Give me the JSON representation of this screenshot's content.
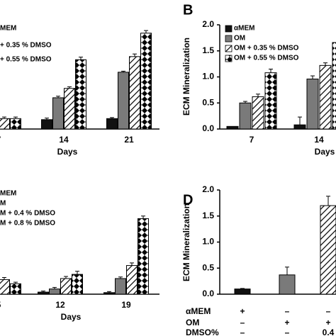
{
  "chart_data": [
    {
      "type": "bar",
      "xlabel": "Days",
      "categories": [
        "7",
        "14",
        "21"
      ],
      "ylim": [
        0,
        2
      ],
      "series": [
        {
          "name": "MEM",
          "color": "#111111",
          "pattern": "solid",
          "values": [
            null,
            0.18,
            0.2
          ],
          "errors": [
            null,
            0.03,
            0.02
          ]
        },
        {
          "color": "#7a7a7a",
          "pattern": "solid",
          "values": [
            null,
            0.6,
            1.09
          ],
          "errors": [
            null,
            0.03,
            0.02
          ]
        },
        {
          "name": "+ 0.35 % DMSO",
          "color": "#ffffff",
          "pattern": "hatch",
          "values": [
            0.2,
            0.78,
            1.39
          ],
          "errors": [
            0.03,
            0.03,
            0.05
          ]
        },
        {
          "name": "+ 0.55 % DMSO",
          "color": "#ffffff",
          "pattern": "checker",
          "values": [
            0.2,
            1.33,
            1.84
          ],
          "errors": [
            0.03,
            0.05,
            0.05
          ]
        }
      ]
    },
    {
      "type": "bar",
      "panel": "B",
      "ylabel": "ECM Mineralization",
      "xlabel": "Days",
      "categories": [
        "7",
        "14"
      ],
      "ylim": [
        0,
        2
      ],
      "yticks": [
        {
          "value": 0,
          "label": "0.0"
        },
        {
          "value": 0.5,
          "label": "0.5"
        },
        {
          "value": 1,
          "label": "1.0"
        },
        {
          "value": 1.5,
          "label": "1.5"
        },
        {
          "value": 2,
          "label": "2.0"
        }
      ],
      "series": [
        {
          "name": "αMEM",
          "color": "#111111",
          "pattern": "solid",
          "values": [
            0.05,
            0.08
          ],
          "errors": [
            null,
            0.15
          ]
        },
        {
          "name": "OM",
          "color": "#7a7a7a",
          "pattern": "solid",
          "values": [
            0.5,
            0.96
          ],
          "errors": [
            0.03,
            0.06
          ]
        },
        {
          "name": "OM + 0.35 % DMSO",
          "color": "#ffffff",
          "pattern": "hatch",
          "values": [
            0.62,
            1.22
          ],
          "errors": [
            0.05,
            0.05
          ]
        },
        {
          "name": "OM + 0.55 % DMSO",
          "color": "#ffffff",
          "pattern": "checker",
          "values": [
            1.08,
            1.66
          ],
          "errors": [
            0.07,
            0.05
          ]
        }
      ]
    },
    {
      "type": "bar",
      "xlabel": "Days",
      "categories": [
        "5",
        "12",
        "19"
      ],
      "ylim": [
        0,
        2
      ],
      "series": [
        {
          "name": "MEM",
          "color": "#111111",
          "pattern": "solid",
          "values": [
            null,
            0.04,
            0.03
          ],
          "errors": [
            null,
            0.02,
            0.02
          ]
        },
        {
          "name": "M",
          "color": "#7a7a7a",
          "pattern": "solid",
          "values": [
            null,
            0.1,
            0.3
          ],
          "errors": [
            null,
            0.03,
            0.03
          ]
        },
        {
          "name": "M + 0.4 % DMSO",
          "color": "#ffffff",
          "pattern": "hatch",
          "values": [
            0.28,
            0.3,
            0.55
          ],
          "errors": [
            0.04,
            0.04,
            0.05
          ]
        },
        {
          "name": "M + 0.8 % DMSO",
          "color": "#ffffff",
          "pattern": "checker",
          "values": [
            0.2,
            0.38,
            1.45
          ],
          "errors": [
            0.03,
            0.06,
            0.05
          ]
        }
      ]
    },
    {
      "type": "bar",
      "panel": "D",
      "ylabel": "ECM Mineralization",
      "ylim": [
        0,
        2
      ],
      "yticks": [
        {
          "value": 0,
          "label": "0.0"
        },
        {
          "value": 0.5,
          "label": "0.5"
        },
        {
          "value": 1,
          "label": "1.0"
        },
        {
          "value": 1.5,
          "label": "1.5"
        },
        {
          "value": 2,
          "label": "2.0"
        }
      ],
      "values": [
        0.1,
        0.37,
        1.7
      ],
      "errors": [
        0.01,
        0.15,
        0.18
      ],
      "colors": [
        "#111111",
        "#7a7a7a",
        "#ffffff"
      ],
      "patterns": [
        "solid",
        "solid",
        "hatch"
      ],
      "table_rows": [
        {
          "label": "αMEM",
          "cells": [
            "+",
            "–",
            "–"
          ]
        },
        {
          "label": "OM",
          "cells": [
            "–",
            "+",
            "+"
          ]
        },
        {
          "label": "DMSO%",
          "cells": [
            "–",
            "–",
            "0.4"
          ]
        }
      ]
    }
  ]
}
